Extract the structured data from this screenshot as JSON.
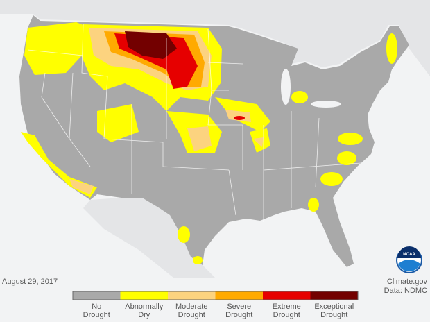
{
  "date": "August 29, 2017",
  "credit": "Climate.gov",
  "source": "Data: NDMC",
  "logo": "NOAA",
  "legend": [
    {
      "label": [
        "No",
        "Drought"
      ],
      "color": "#a9a9a9"
    },
    {
      "label": [
        "Abnormally",
        "Dry"
      ],
      "color": "#ffff00"
    },
    {
      "label": [
        "Moderate",
        "Drought"
      ],
      "color": "#fcd37f"
    },
    {
      "label": [
        "Severe",
        "Drought"
      ],
      "color": "#ffaa00"
    },
    {
      "label": [
        "Extreme",
        "Drought"
      ],
      "color": "#e60000"
    },
    {
      "label": [
        "Exceptional",
        "Drought"
      ],
      "color": "#730000"
    }
  ]
}
